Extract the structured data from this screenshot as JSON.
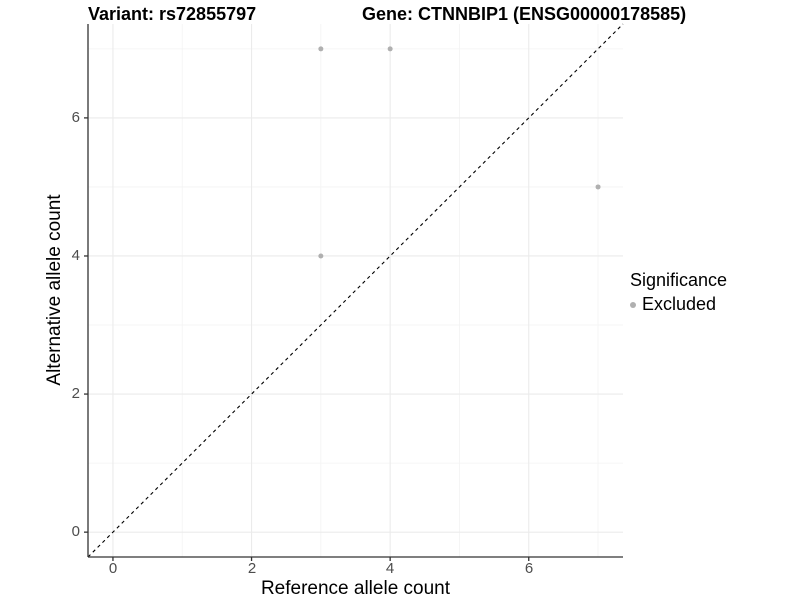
{
  "titles": {
    "variant": "Variant: rs72855797",
    "gene": "Gene: CTNNBIP1 (ENSG00000178585)"
  },
  "axes": {
    "x_label": "Reference allele count",
    "y_label": "Alternative allele count",
    "x_ticks": [
      "0",
      "2",
      "4",
      "6"
    ],
    "y_ticks": [
      "0",
      "2",
      "4",
      "6"
    ]
  },
  "legend": {
    "title": "Significance",
    "items": [
      {
        "label": "Excluded",
        "color": "#b0b0b0"
      }
    ]
  },
  "colors": {
    "background": "#ffffff",
    "axis_line": "#333333",
    "tick_label": "#4d4d4d",
    "grid_major": "#ebebeb",
    "grid_minor": "#f3f3f3",
    "identity_line": "#000000",
    "point": "#b0b0b0"
  },
  "chart_data": {
    "type": "scatter",
    "title": "Variant: rs72855797 | Gene: CTNNBIP1 (ENSG00000178585)",
    "xlabel": "Reference allele count",
    "ylabel": "Alternative allele count",
    "xlim": [
      -0.36,
      7.36
    ],
    "ylim": [
      -0.36,
      7.36
    ],
    "x_breaks": [
      0,
      2,
      4,
      6
    ],
    "y_breaks": [
      0,
      2,
      4,
      6
    ],
    "x_minor_breaks": [
      1,
      3,
      5,
      7
    ],
    "y_minor_breaks": [
      1,
      3,
      5,
      7
    ],
    "grid": true,
    "legend_position": "right",
    "identity_line": {
      "style": "dashed",
      "slope": 1,
      "intercept": 0
    },
    "series": [
      {
        "name": "Excluded",
        "color": "#b0b0b0",
        "points": [
          [
            3,
            7
          ],
          [
            4,
            7
          ],
          [
            7,
            5
          ],
          [
            3,
            4
          ]
        ]
      }
    ]
  }
}
